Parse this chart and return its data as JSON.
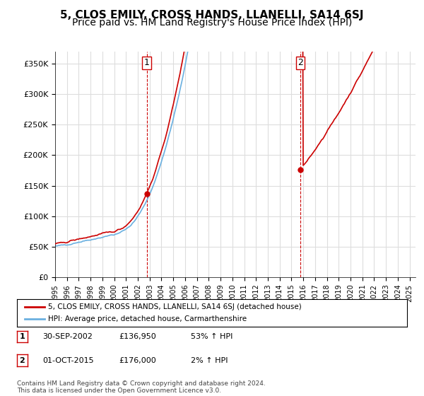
{
  "title": "5, CLOS EMILY, CROSS HANDS, LLANELLI, SA14 6SJ",
  "subtitle": "Price paid vs. HM Land Registry's House Price Index (HPI)",
  "ylabel_ticks": [
    "£0",
    "£50K",
    "£100K",
    "£150K",
    "£200K",
    "£250K",
    "£300K",
    "£350K"
  ],
  "ytick_values": [
    0,
    50000,
    100000,
    150000,
    200000,
    250000,
    300000,
    350000
  ],
  "ylim": [
    0,
    370000
  ],
  "xlim_start": 1995.0,
  "xlim_end": 2025.5,
  "sale1": {
    "date": 2002.75,
    "price": 136950,
    "label": "1"
  },
  "sale2": {
    "date": 2015.75,
    "price": 176000,
    "label": "2"
  },
  "legend_line1": "5, CLOS EMILY, CROSS HANDS, LLANELLI, SA14 6SJ (detached house)",
  "legend_line2": "HPI: Average price, detached house, Carmarthenshire",
  "table_row1": [
    "1",
    "30-SEP-2002",
    "£136,950",
    "53% ↑ HPI"
  ],
  "table_row2": [
    "2",
    "01-OCT-2015",
    "£176,000",
    "2% ↑ HPI"
  ],
  "footer": "Contains HM Land Registry data © Crown copyright and database right 2024.\nThis data is licensed under the Open Government Licence v3.0.",
  "hpi_color": "#6ab0e0",
  "price_color": "#cc0000",
  "sale_marker_color": "#cc0000",
  "bg_color": "#ffffff",
  "grid_color": "#dddddd",
  "vline_color": "#cc0000",
  "title_fontsize": 11,
  "subtitle_fontsize": 10
}
